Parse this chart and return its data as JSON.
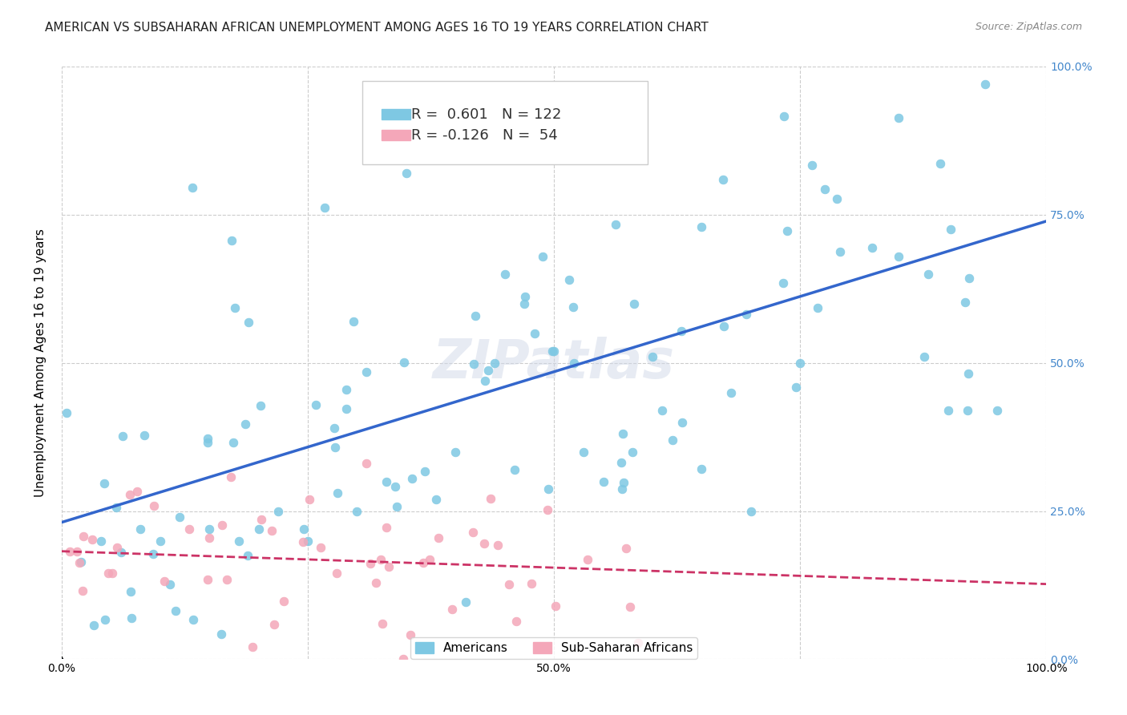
{
  "title": "AMERICAN VS SUBSAHARAN AFRICAN UNEMPLOYMENT AMONG AGES 16 TO 19 YEARS CORRELATION CHART",
  "source": "Source: ZipAtlas.com",
  "xlabel": "",
  "ylabel": "Unemployment Among Ages 16 to 19 years",
  "xlim": [
    0,
    1
  ],
  "ylim": [
    0,
    1
  ],
  "xticks": [
    0.0,
    0.25,
    0.5,
    0.75,
    1.0
  ],
  "yticks": [
    0.0,
    0.25,
    0.5,
    0.75,
    1.0
  ],
  "xticklabels": [
    "0.0%",
    "25.0%",
    "50.0%",
    "75.0%",
    "100.0%"
  ],
  "yticklabels": [
    "0.0%",
    "25.0%",
    "50.0%",
    "75.0%",
    "100.0%"
  ],
  "watermark": "ZIPatlas",
  "legend_entries": [
    {
      "label": "Americans",
      "R": "0.601",
      "N": "122",
      "color": "#7ec8e3"
    },
    {
      "label": "Sub-Saharan Africans",
      "R": "-0.126",
      "N": "54",
      "color": "#f4a7b9"
    }
  ],
  "american_color": "#7ec8e3",
  "african_color": "#f4a7b9",
  "american_line_color": "#3366cc",
  "african_line_color": "#cc3366",
  "american_R": 0.601,
  "american_N": 122,
  "african_R": -0.126,
  "african_N": 54,
  "title_fontsize": 11,
  "axis_label_fontsize": 11,
  "tick_fontsize": 10,
  "legend_fontsize": 13,
  "source_fontsize": 9,
  "watermark_fontsize": 48,
  "background_color": "#ffffff",
  "grid_color": "#cccccc",
  "right_ytick_color": "#4488cc"
}
